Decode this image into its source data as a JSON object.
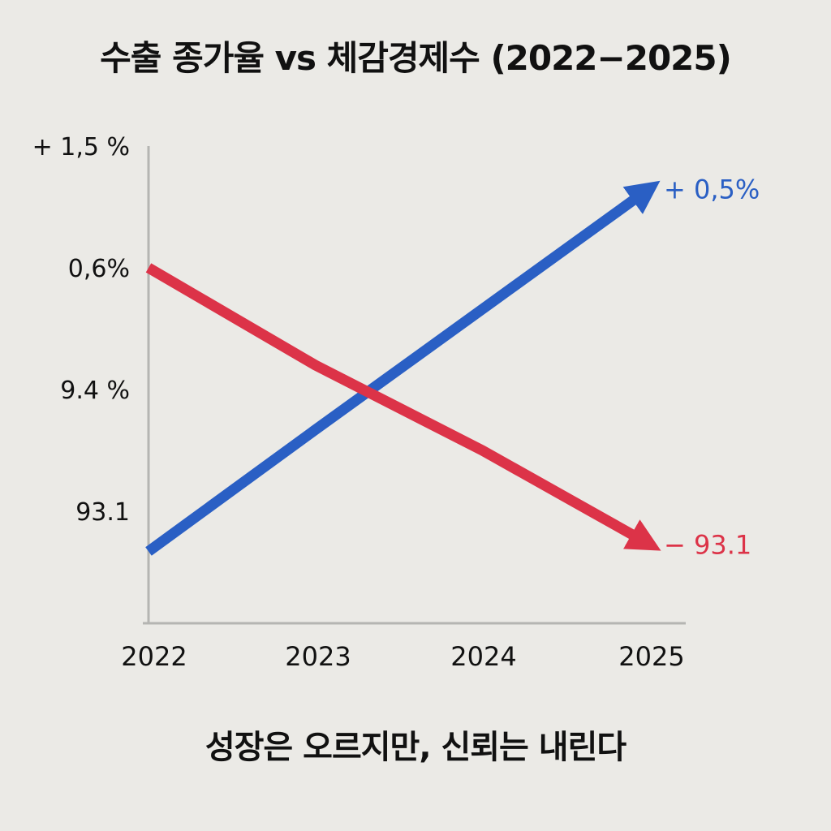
{
  "chart_data": {
    "type": "line",
    "title": "수출 종가율 vs 체감경제수 (2022−2025)",
    "subtitle": "성장은 오르지만, 신뢰는 내린다",
    "xlabel": "",
    "ylabel": "",
    "x": [
      "2022",
      "2023",
      "2024",
      "2025"
    ],
    "y_tick_labels": [
      "93.1",
      "9.4 %",
      "0,6%",
      "+ 1,5 %"
    ],
    "y_tick_positions": [
      0,
      1,
      2,
      3
    ],
    "ylim": [
      -0.92,
      3
    ],
    "grid": false,
    "series": [
      {
        "name": "수출 종가율",
        "color": "#2a5fc4",
        "values": [
          -0.33,
          0.67,
          1.66,
          2.65
        ],
        "end_label": "+ 0,5%"
      },
      {
        "name": "체감경제수",
        "color": "#dc3348",
        "values": [
          2.0,
          1.2,
          0.5,
          -0.27
        ],
        "end_label": "− 93.1"
      }
    ]
  }
}
